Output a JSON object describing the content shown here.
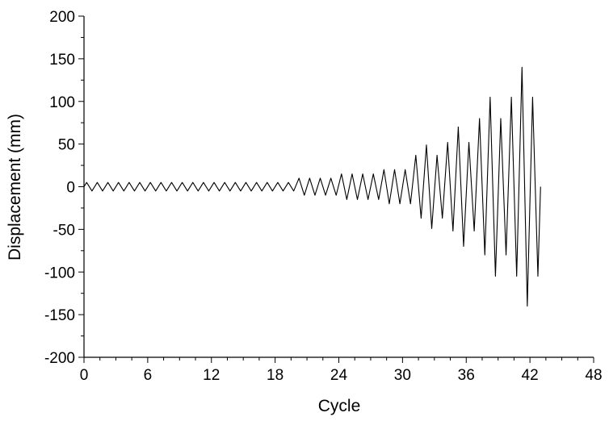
{
  "chart_data": {
    "type": "line",
    "title": "",
    "xlabel": "Cycle",
    "ylabel": "Displacement (mm)",
    "xlim": [
      0,
      48
    ],
    "ylim": [
      -200,
      200
    ],
    "xticks": [
      "0",
      "6",
      "12",
      "18",
      "24",
      "30",
      "36",
      "42",
      "48"
    ],
    "yticks": [
      "200",
      "150",
      "100",
      "50",
      "0",
      "-50",
      "-100",
      "-150",
      "-200"
    ],
    "x_minor_step": 1.5,
    "y_minor_step": 25,
    "grid": false,
    "legend": "none",
    "line_color": "#000000",
    "series": [
      {
        "amplitude_stages": [
          {
            "cycles": 20,
            "peak": 5,
            "trough": -5
          },
          {
            "cycles": 4,
            "peak": 10,
            "trough": -10
          },
          {
            "cycles": 4,
            "peak": 15,
            "trough": -15
          },
          {
            "cycles": 3,
            "peak": 20,
            "trough": -20
          },
          {
            "cycles": 3,
            "peak": 37,
            "trough": -37
          },
          {
            "cycles": 3,
            "peak": 52,
            "trough": -52
          },
          {
            "cycles": 3,
            "peak": 80,
            "trough": -80
          },
          {
            "cycles": 3,
            "peak": 105,
            "trough": -105
          }
        ],
        "highlights": [
          {
            "cycle": 32,
            "peak": 49,
            "trough": -49
          },
          {
            "cycle": 35,
            "peak": 70,
            "trough": -70
          },
          {
            "cycle": 38,
            "peak": 105,
            "trough": -105
          },
          {
            "cycle": 41,
            "peak": 140,
            "trough": -140
          }
        ],
        "final_value": 0
      }
    ]
  }
}
